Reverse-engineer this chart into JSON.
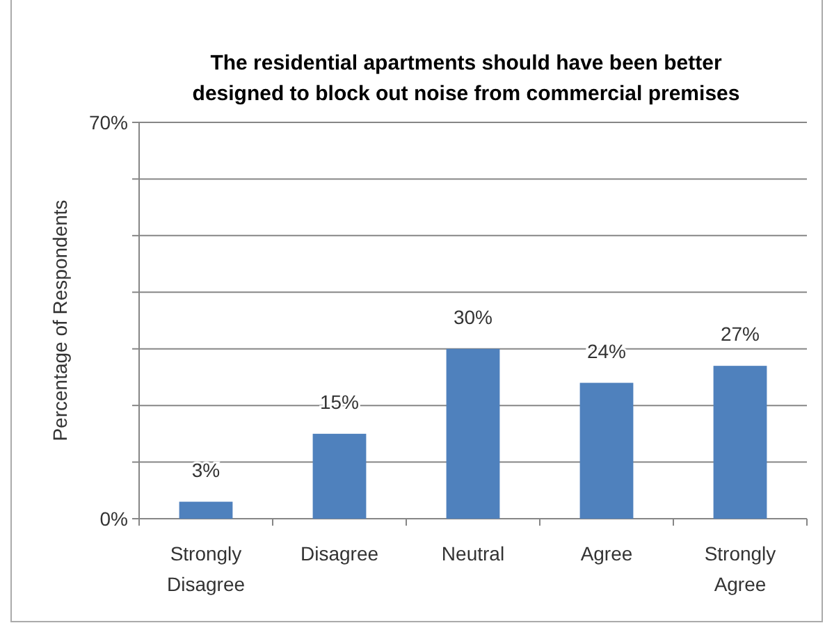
{
  "chart_data": {
    "type": "bar",
    "title": "The residential apartments should have been better\ndesigned to block out noise from commercial premises",
    "ylabel": "Percentage of Respondents",
    "categories": [
      "Strongly\nDisagree",
      "Disagree",
      "Neutral",
      "Agree",
      "Strongly\nAgree"
    ],
    "values": [
      3,
      15,
      30,
      24,
      27
    ],
    "value_labels": [
      "3%",
      "15%",
      "30%",
      "24%",
      "27%"
    ],
    "color": "#4f81bd",
    "ylim": [
      0,
      70
    ],
    "yticks": [
      {
        "value": 0,
        "label": "0%"
      },
      {
        "value": 10,
        "label": null
      },
      {
        "value": 20,
        "label": null
      },
      {
        "value": 30,
        "label": null
      },
      {
        "value": 40,
        "label": null
      },
      {
        "value": 50,
        "label": null
      },
      {
        "value": 60,
        "label": null
      },
      {
        "value": 70,
        "label": "70%"
      }
    ],
    "grid": "y"
  }
}
